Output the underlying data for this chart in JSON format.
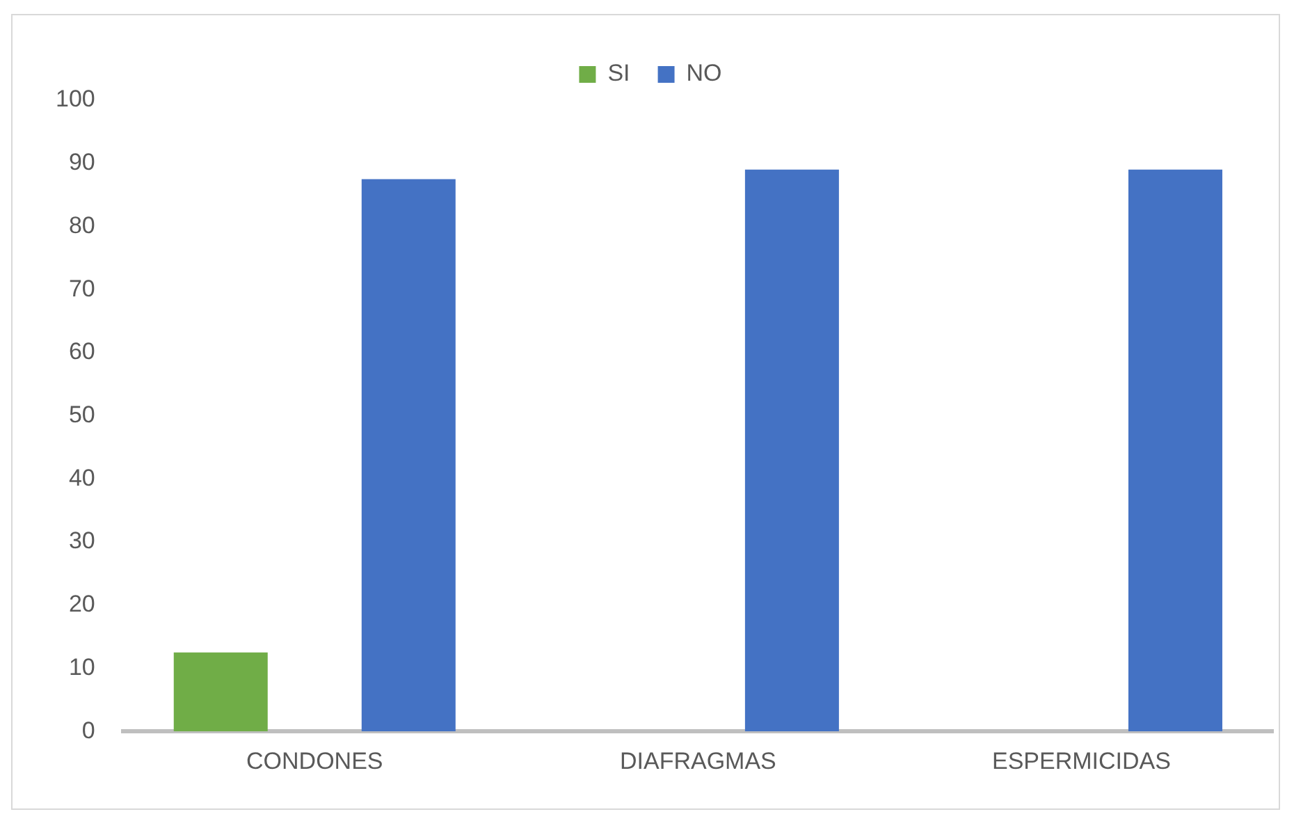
{
  "chart_data": {
    "type": "bar",
    "categories": [
      "CONDONES",
      "DIAFRAGMAS",
      "ESPERMICIDAS"
    ],
    "series": [
      {
        "name": "SI",
        "color": "#70ad47",
        "values": [
          12.5,
          0,
          0
        ]
      },
      {
        "name": "NO",
        "color": "#4472c4",
        "values": [
          87.5,
          89,
          89
        ]
      }
    ],
    "ylim": [
      0,
      100
    ],
    "yticks": [
      0,
      10,
      20,
      30,
      40,
      50,
      60,
      70,
      80,
      90,
      100
    ],
    "grid": false,
    "legend": "top"
  }
}
